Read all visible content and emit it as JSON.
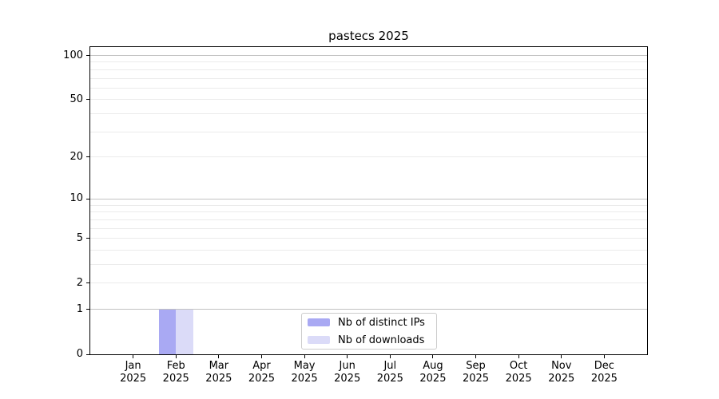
{
  "chart_data": {
    "type": "bar",
    "title": "pastecs 2025",
    "categories": [
      "Jan",
      "Feb",
      "Mar",
      "Apr",
      "May",
      "Jun",
      "Jul",
      "Aug",
      "Sep",
      "Oct",
      "Nov",
      "Dec"
    ],
    "x_year_label": "2025",
    "series": [
      {
        "name": "Nb of distinct IPs",
        "color": "#a9a9f3",
        "values": [
          0,
          1,
          0,
          0,
          0,
          0,
          0,
          0,
          0,
          0,
          0,
          0
        ]
      },
      {
        "name": "Nb of downloads",
        "color": "#dbdbf8",
        "values": [
          0,
          1,
          0,
          0,
          0,
          0,
          0,
          0,
          0,
          0,
          0,
          0
        ]
      }
    ],
    "yscale": "log1p",
    "ylim": [
      0,
      100
    ],
    "y_tick_values": [
      0,
      1,
      2,
      5,
      10,
      20,
      50,
      100
    ],
    "y_major_grid_values": [
      1,
      10,
      100
    ],
    "y_minor_grid_values": [
      2,
      3,
      4,
      5,
      6,
      7,
      8,
      9,
      20,
      30,
      40,
      50,
      60,
      70,
      80,
      90
    ],
    "legend": {
      "position": "lower center",
      "entries": [
        "Nb of distinct IPs",
        "Nb of downloads"
      ]
    },
    "colors": {
      "major_grid": "#c2c2c2",
      "minor_grid": "#ebebeb",
      "axis": "#000000",
      "background": "#ffffff",
      "legend_border": "#cccccc",
      "bar_distinct_ips": "#a9a9f3",
      "bar_downloads": "#dbdbf8"
    }
  }
}
